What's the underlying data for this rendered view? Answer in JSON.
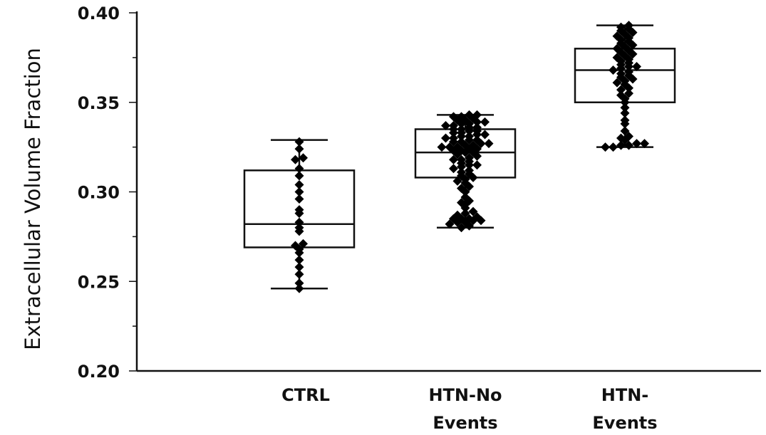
{
  "chart_data": {
    "type": "boxplot",
    "ylabel": "Extracellular Volume Fraction",
    "ylim": [
      0.2,
      0.4
    ],
    "yticks": [
      "0.20",
      "0.25",
      "0.30",
      "0.35",
      "0.40"
    ],
    "ytick_values": [
      0.2,
      0.25,
      0.3,
      0.35,
      0.4
    ],
    "minor_tick_step": 0.025,
    "grid": false,
    "groups": [
      {
        "label_lines": [
          "CTRL"
        ],
        "whisker_low": 0.246,
        "q1": 0.269,
        "median": 0.282,
        "q3": 0.312,
        "whisker_high": 0.329,
        "points": [
          0.246,
          0.249,
          0.254,
          0.258,
          0.262,
          0.266,
          0.268,
          0.27,
          0.271,
          0.278,
          0.28,
          0.283,
          0.288,
          0.29,
          0.296,
          0.3,
          0.304,
          0.309,
          0.313,
          0.318,
          0.319,
          0.324,
          0.328
        ]
      },
      {
        "label_lines": [
          "HTN-No",
          "Events"
        ],
        "whisker_low": 0.28,
        "q1": 0.308,
        "median": 0.322,
        "q3": 0.335,
        "whisker_high": 0.343,
        "points": [
          0.28,
          0.281,
          0.282,
          0.283,
          0.283,
          0.284,
          0.284,
          0.285,
          0.285,
          0.285,
          0.286,
          0.287,
          0.288,
          0.289,
          0.291,
          0.293,
          0.294,
          0.295,
          0.297,
          0.3,
          0.302,
          0.303,
          0.305,
          0.306,
          0.307,
          0.308,
          0.309,
          0.31,
          0.311,
          0.312,
          0.313,
          0.314,
          0.315,
          0.315,
          0.316,
          0.317,
          0.318,
          0.318,
          0.319,
          0.32,
          0.321,
          0.322,
          0.322,
          0.323,
          0.323,
          0.324,
          0.324,
          0.325,
          0.325,
          0.325,
          0.326,
          0.326,
          0.327,
          0.327,
          0.328,
          0.328,
          0.329,
          0.329,
          0.33,
          0.33,
          0.331,
          0.331,
          0.332,
          0.332,
          0.333,
          0.333,
          0.334,
          0.334,
          0.335,
          0.335,
          0.336,
          0.336,
          0.337,
          0.337,
          0.338,
          0.338,
          0.339,
          0.339,
          0.34,
          0.34,
          0.341,
          0.342,
          0.342,
          0.343,
          0.343
        ]
      },
      {
        "label_lines": [
          "HTN-",
          "Events"
        ],
        "whisker_low": 0.325,
        "q1": 0.35,
        "median": 0.368,
        "q3": 0.38,
        "whisker_high": 0.393,
        "points": [
          0.325,
          0.325,
          0.326,
          0.326,
          0.327,
          0.327,
          0.329,
          0.33,
          0.331,
          0.334,
          0.338,
          0.34,
          0.344,
          0.347,
          0.35,
          0.352,
          0.354,
          0.355,
          0.357,
          0.358,
          0.36,
          0.361,
          0.362,
          0.363,
          0.364,
          0.365,
          0.366,
          0.367,
          0.368,
          0.369,
          0.37,
          0.37,
          0.371,
          0.372,
          0.373,
          0.374,
          0.375,
          0.376,
          0.377,
          0.378,
          0.379,
          0.38,
          0.381,
          0.382,
          0.383,
          0.384,
          0.385,
          0.386,
          0.387,
          0.388,
          0.389,
          0.39,
          0.391,
          0.392,
          0.393
        ]
      }
    ]
  }
}
